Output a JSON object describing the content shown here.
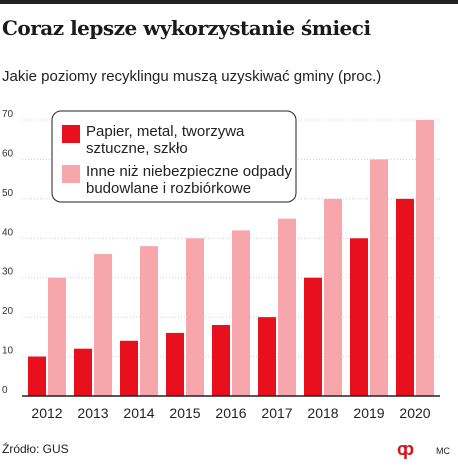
{
  "title": "Coraz lepsze wykorzystanie śmieci",
  "subtitle": "Jakie poziomy recyklingu muszą uzyskiwać gminy (proc.)",
  "source": "Źródło: GUS",
  "agency": "MC",
  "logo_glyph": "cp",
  "colors": {
    "series1": "#e8101c",
    "series2": "#f7a7ab",
    "axis": "#222222",
    "grid": "#cfcfcf"
  },
  "chart_data": {
    "type": "bar",
    "categories": [
      "2012",
      "2013",
      "2014",
      "2015",
      "2016",
      "2017",
      "2018",
      "2019",
      "2020"
    ],
    "series": [
      {
        "name": "Papier, metal, tworzywa sztuczne, szkło",
        "values": [
          10,
          12,
          14,
          16,
          18,
          20,
          30,
          40,
          50
        ]
      },
      {
        "name": "Inne niż niebezpieczne odpady budowlane i rozbiórkowe",
        "values": [
          30,
          36,
          38,
          40,
          42,
          45,
          50,
          60,
          70
        ]
      }
    ],
    "yticks": [
      "0",
      "10",
      "20",
      "30",
      "40",
      "50",
      "60",
      "70"
    ],
    "ylim": [
      0,
      70
    ],
    "grid": true,
    "legend_position": "top-left"
  },
  "legend": [
    {
      "lines": [
        "Papier, metal, tworzywa",
        "sztuczne, szkło"
      ]
    },
    {
      "lines": [
        "Inne niż niebezpieczne odpady",
        "budowlane i rozbiórkowe"
      ]
    }
  ]
}
